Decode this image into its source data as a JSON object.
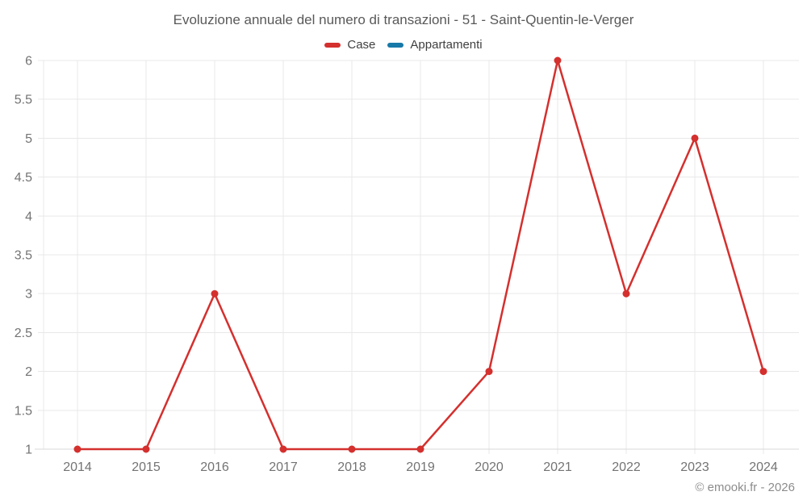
{
  "page": {
    "title": "Evoluzione annuale del numero di transazioni - 51 - Saint-Quentin-le-Verger",
    "footer_credit": "© emooki.fr - 2026"
  },
  "legend": {
    "items": [
      {
        "label": "Case",
        "color": "#d4302e"
      },
      {
        "label": "Appartamenti",
        "color": "#1779a8"
      }
    ]
  },
  "chart_data": {
    "type": "line",
    "title": "Evoluzione annuale del numero di transazioni - 51 - Saint-Quentin-le-Verger",
    "categories": [
      "2014",
      "2015",
      "2016",
      "2017",
      "2018",
      "2019",
      "2020",
      "2021",
      "2022",
      "2023",
      "2024"
    ],
    "series": [
      {
        "name": "Case",
        "color": "#d4302e",
        "values": [
          1,
          1,
          3,
          1,
          1,
          1,
          2,
          6,
          3,
          5,
          2
        ]
      },
      {
        "name": "Appartamenti",
        "color": "#1779a8",
        "values": []
      }
    ],
    "xlabel": "",
    "ylabel": "",
    "ylim": [
      1,
      6
    ],
    "ytick_step": 0.5,
    "yticks": [
      "1",
      "1.5",
      "2",
      "2.5",
      "3",
      "3.5",
      "4",
      "4.5",
      "5",
      "5.5",
      "6"
    ],
    "grid": true,
    "legend_position": "top",
    "colors": {
      "gridline": "#e8e8e8",
      "axis_line": "#d9d9d9",
      "tick_label": "#737373",
      "title_text": "#595959"
    }
  }
}
